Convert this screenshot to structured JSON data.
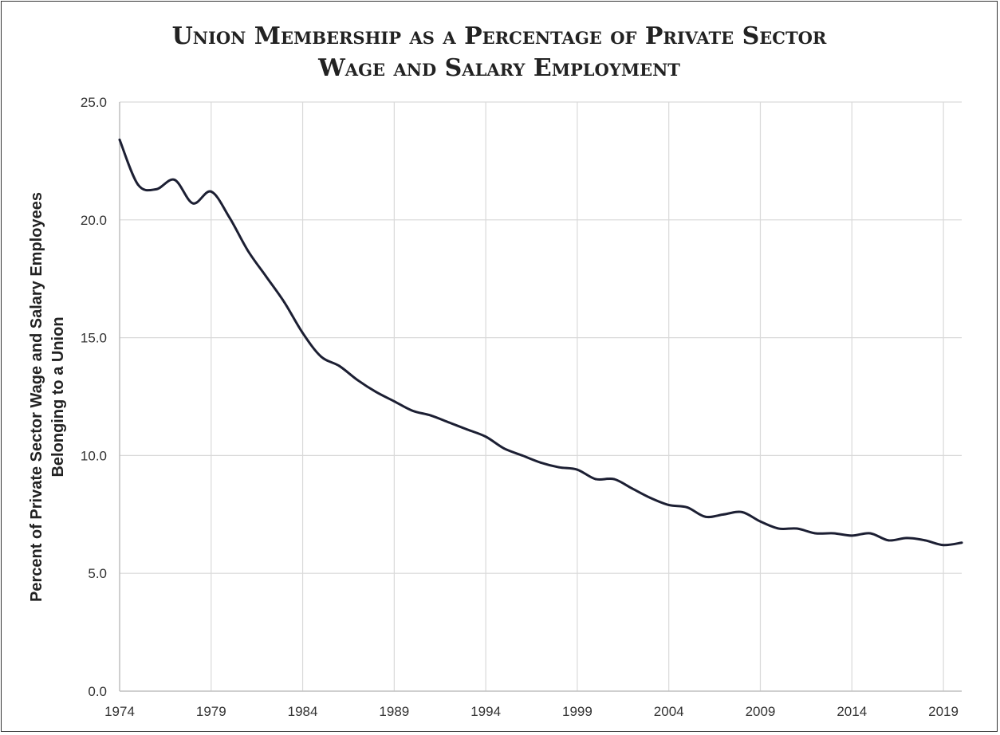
{
  "colors": {
    "line": "#1c1f33",
    "grid": "#d9d9d9",
    "text": "#333333"
  },
  "chart_data": {
    "type": "line",
    "title_lines": [
      "Union Membership as a Percentage of Private Sector",
      "Wage and Salary Employment"
    ],
    "ylabel_lines": [
      "Percent of Private Sector Wage and Salary Employees",
      "Belonging to a Union"
    ],
    "xlabel": "",
    "x_ticks": [
      "1974",
      "1979",
      "1984",
      "1989",
      "1994",
      "1999",
      "2004",
      "2009",
      "2014",
      "2019"
    ],
    "y_ticks": [
      "0.0",
      "5.0",
      "10.0",
      "15.0",
      "20.0",
      "25.0"
    ],
    "ylim": [
      0,
      25
    ],
    "xlim": [
      1974,
      2020
    ],
    "grid": true,
    "series": [
      {
        "x": [
          1974,
          1975,
          1976,
          1977,
          1978,
          1979,
          1980,
          1981,
          1982,
          1983,
          1984,
          1985,
          1986,
          1987,
          1988,
          1989,
          1990,
          1991,
          1992,
          1993,
          1994,
          1995,
          1996,
          1997,
          1998,
          1999,
          2000,
          2001,
          2002,
          2003,
          2004,
          2005,
          2006,
          2007,
          2008,
          2009,
          2010,
          2011,
          2012,
          2013,
          2014,
          2015,
          2016,
          2017,
          2018,
          2019,
          2020
        ],
        "values": [
          23.4,
          21.5,
          21.3,
          21.7,
          20.7,
          21.2,
          20.1,
          18.7,
          17.6,
          16.5,
          15.2,
          14.2,
          13.8,
          13.2,
          12.7,
          12.3,
          11.9,
          11.7,
          11.4,
          11.1,
          10.8,
          10.3,
          10.0,
          9.7,
          9.5,
          9.4,
          9.0,
          9.0,
          8.6,
          8.2,
          7.9,
          7.8,
          7.4,
          7.5,
          7.6,
          7.2,
          6.9,
          6.9,
          6.7,
          6.7,
          6.6,
          6.7,
          6.4,
          6.5,
          6.4,
          6.2,
          6.3
        ]
      }
    ]
  }
}
